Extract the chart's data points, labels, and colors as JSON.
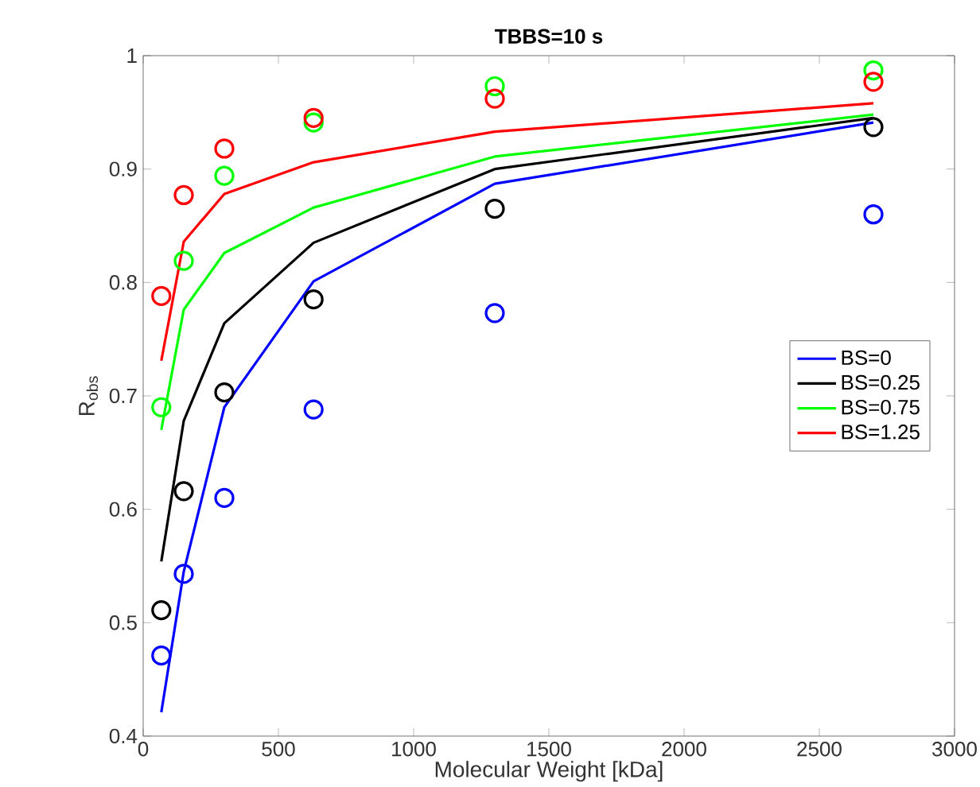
{
  "chart_data": {
    "type": "line",
    "title": "TBBS=10 s",
    "xlabel": "Molecular Weight [kDa]",
    "ylabel": "R$_{obs}$",
    "x": [
      67,
      150,
      300,
      630,
      1300,
      2700
    ],
    "xlim": [
      0,
      3000
    ],
    "xticks": [
      0,
      500,
      1000,
      1500,
      2000,
      2500,
      3000
    ],
    "ylim": [
      0.4,
      1
    ],
    "yticks": [
      0.4,
      0.5,
      0.6,
      0.7,
      0.8,
      0.9,
      1
    ],
    "grid": false,
    "legend": "right",
    "series": [
      {
        "name": "BS=0",
        "color": "#0000ff",
        "values": [
          0.421,
          0.545,
          0.69,
          0.801,
          0.887,
          0.941
        ]
      },
      {
        "name": "BS=0.25",
        "color": "#000000",
        "values": [
          0.554,
          0.678,
          0.764,
          0.835,
          0.9,
          0.945
        ]
      },
      {
        "name": "BS=0.75",
        "color": "#00ff00",
        "values": [
          0.67,
          0.776,
          0.826,
          0.866,
          0.911,
          0.948
        ]
      },
      {
        "name": "BS=1.25",
        "color": "#ff0000",
        "values": [
          0.731,
          0.836,
          0.878,
          0.906,
          0.933,
          0.958
        ]
      },
      {
        "type": "scatter",
        "marker": "circle",
        "color": "#0000ff",
        "values": [
          0.471,
          0.543,
          0.61,
          0.688,
          0.773,
          0.86
        ]
      },
      {
        "type": "scatter",
        "marker": "circle",
        "color": "#000000",
        "values": [
          0.511,
          0.616,
          0.703,
          0.785,
          0.865,
          0.937
        ]
      },
      {
        "type": "scatter",
        "marker": "circle",
        "color": "#00ff00",
        "values": [
          0.69,
          0.819,
          0.894,
          0.941,
          0.973,
          0.987
        ]
      },
      {
        "type": "scatter",
        "marker": "circle",
        "color": "#ff0000",
        "values": [
          0.788,
          0.877,
          0.918,
          0.945,
          0.962,
          0.977
        ]
      }
    ]
  }
}
